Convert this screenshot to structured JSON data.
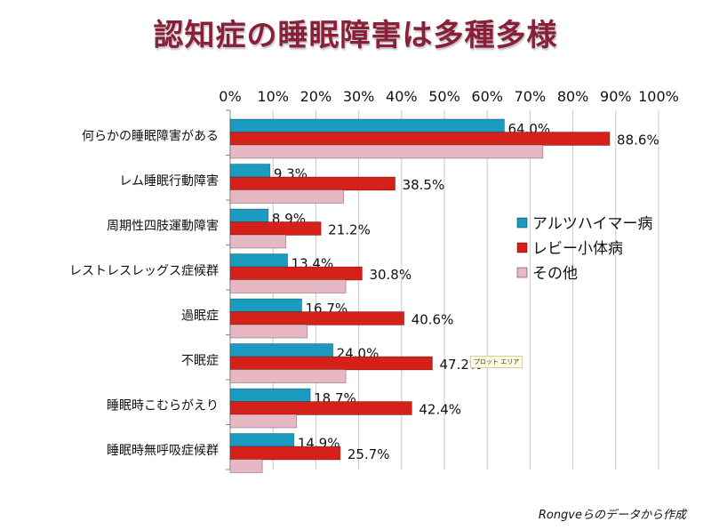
{
  "chart_data": {
    "type": "bar",
    "orientation": "horizontal",
    "title": "認知症の睡眠障害は多種多様",
    "categories": [
      "何らかの睡眠障害がある",
      "レム睡眠行動障害",
      "周期性四肢運動障害",
      "レストレスレッグス症候群",
      "過眠症",
      "不眠症",
      "睡眠時こむらがえり",
      "睡眠時無呼吸症候群"
    ],
    "series": [
      {
        "name": "アルツハイマー病",
        "color": "#1a9bbf",
        "values": [
          64.0,
          9.3,
          8.9,
          13.4,
          16.7,
          24.0,
          18.7,
          14.9
        ],
        "labels": [
          "64.0%",
          "9.3%",
          "8.9%",
          "13.4%",
          "16.7%",
          "24.0%",
          "18.7%",
          "14.9%"
        ]
      },
      {
        "name": "レビー小体病",
        "color": "#d6201a",
        "values": [
          88.6,
          38.5,
          21.2,
          30.8,
          40.6,
          47.2,
          42.4,
          25.7
        ],
        "labels": [
          "88.6%",
          "38.5%",
          "21.2%",
          "30.8%",
          "40.6%",
          "47.2%",
          "42.4%",
          "25.7%"
        ]
      },
      {
        "name": "その他",
        "color": "#e8b7c4",
        "values": [
          73,
          26.5,
          13,
          27,
          18,
          27,
          15.5,
          7.5
        ]
      }
    ],
    "xlim": [
      0,
      100
    ],
    "xticks": [
      "0%",
      "10%",
      "20%",
      "30%",
      "40%",
      "50%",
      "60%",
      "70%",
      "80%",
      "90%",
      "100%"
    ],
    "grid": true,
    "axis_position": "top",
    "legend": "right"
  },
  "tooltip": "プロット エリア",
  "footer": "Rongveらのデータから作成"
}
